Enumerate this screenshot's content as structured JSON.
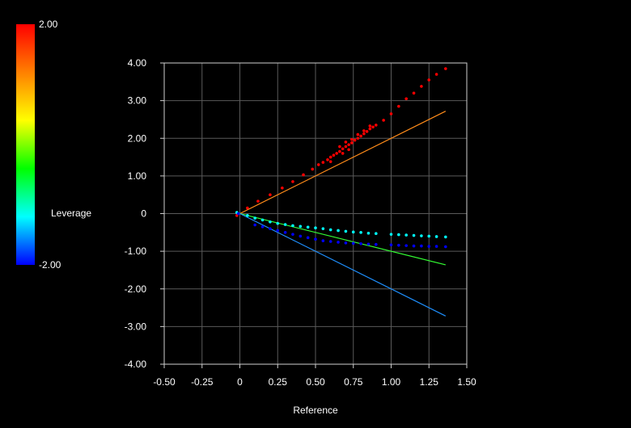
{
  "chart_data": {
    "type": "scatter",
    "title": "",
    "xlabel": "Reference",
    "ylabel": "",
    "xlim": [
      -0.5,
      1.5
    ],
    "ylim": [
      -4,
      4
    ],
    "x_ticks": [
      -0.5,
      -0.25,
      0,
      0.25,
      0.5,
      0.75,
      1.0,
      1.25,
      1.5
    ],
    "x_tick_labels": [
      "-0.50",
      "-0.25",
      "0",
      "0.25",
      "0.50",
      "0.75",
      "1.00",
      "1.25",
      "1.50"
    ],
    "y_ticks": [
      4,
      3,
      2,
      1,
      0,
      -1,
      -2,
      -3,
      -4
    ],
    "y_tick_labels": [
      "4.00",
      "3.00",
      "2.00",
      "1.00",
      "0",
      "-1.00",
      "-2.00",
      "-3.00",
      "-4.00"
    ],
    "grid": true,
    "background": "#000000",
    "colorbar": {
      "label": "Leverage",
      "max_label": "2.00",
      "min_label": "-2.00",
      "range": [
        -2,
        2
      ],
      "colors": [
        "#ff0000",
        "#ff8000",
        "#ffff00",
        "#00ff00",
        "#00ffff",
        "#0000ff"
      ]
    },
    "lines": [
      {
        "color": "#ff8c1a",
        "x": [
          -0.02,
          1.36
        ],
        "y": [
          -0.04,
          2.72
        ]
      },
      {
        "color": "#33ff33",
        "x": [
          -0.02,
          1.36
        ],
        "y": [
          0.02,
          -1.36
        ]
      },
      {
        "color": "#1e90ff",
        "x": [
          -0.02,
          1.36
        ],
        "y": [
          0.04,
          -2.72
        ]
      }
    ],
    "series": [
      {
        "color": "#ff0000",
        "points": [
          [
            -0.02,
            -0.05
          ],
          [
            0.05,
            0.15
          ],
          [
            0.12,
            0.33
          ],
          [
            0.2,
            0.5
          ],
          [
            0.28,
            0.68
          ],
          [
            0.35,
            0.85
          ],
          [
            0.42,
            1.03
          ],
          [
            0.48,
            1.18
          ],
          [
            0.52,
            1.3
          ],
          [
            0.55,
            1.36
          ],
          [
            0.58,
            1.43
          ],
          [
            0.6,
            1.5
          ],
          [
            0.62,
            1.55
          ],
          [
            0.64,
            1.6
          ],
          [
            0.66,
            1.65
          ],
          [
            0.68,
            1.72
          ],
          [
            0.7,
            1.78
          ],
          [
            0.72,
            1.83
          ],
          [
            0.74,
            1.88
          ],
          [
            0.76,
            1.95
          ],
          [
            0.78,
            2.0
          ],
          [
            0.8,
            2.06
          ],
          [
            0.82,
            2.12
          ],
          [
            0.84,
            2.18
          ],
          [
            0.86,
            2.25
          ],
          [
            0.88,
            2.3
          ],
          [
            0.9,
            2.35
          ],
          [
            0.95,
            2.48
          ],
          [
            1.0,
            2.65
          ],
          [
            1.05,
            2.85
          ],
          [
            1.1,
            3.05
          ],
          [
            1.15,
            3.2
          ],
          [
            1.2,
            3.38
          ],
          [
            1.25,
            3.55
          ],
          [
            1.3,
            3.7
          ],
          [
            1.36,
            3.85
          ],
          [
            0.66,
            1.78
          ],
          [
            0.7,
            1.9
          ],
          [
            0.74,
            1.97
          ],
          [
            0.78,
            2.1
          ],
          [
            0.82,
            2.2
          ],
          [
            0.86,
            2.33
          ],
          [
            0.6,
            1.38
          ],
          [
            0.68,
            1.6
          ],
          [
            0.72,
            1.7
          ]
        ]
      },
      {
        "color": "#00ffff",
        "points": [
          [
            -0.02,
            0.03
          ],
          [
            0.05,
            -0.05
          ],
          [
            0.1,
            -0.12
          ],
          [
            0.15,
            -0.17
          ],
          [
            0.2,
            -0.22
          ],
          [
            0.25,
            -0.26
          ],
          [
            0.3,
            -0.29
          ],
          [
            0.35,
            -0.32
          ],
          [
            0.4,
            -0.34
          ],
          [
            0.45,
            -0.36
          ],
          [
            0.5,
            -0.38
          ],
          [
            0.55,
            -0.4
          ],
          [
            0.6,
            -0.43
          ],
          [
            0.65,
            -0.45
          ],
          [
            0.7,
            -0.47
          ],
          [
            0.75,
            -0.49
          ],
          [
            0.8,
            -0.5
          ],
          [
            0.85,
            -0.52
          ],
          [
            0.9,
            -0.53
          ],
          [
            1.0,
            -0.55
          ],
          [
            1.05,
            -0.56
          ],
          [
            1.1,
            -0.57
          ],
          [
            1.15,
            -0.58
          ],
          [
            1.2,
            -0.59
          ],
          [
            1.25,
            -0.6
          ],
          [
            1.3,
            -0.61
          ],
          [
            1.36,
            -0.62
          ]
        ]
      },
      {
        "color": "#0000ff",
        "points": [
          [
            -0.01,
            0.0
          ],
          [
            0.1,
            -0.3
          ],
          [
            0.15,
            -0.35
          ],
          [
            0.2,
            -0.4
          ],
          [
            0.25,
            -0.45
          ],
          [
            0.3,
            -0.5
          ],
          [
            0.35,
            -0.55
          ],
          [
            0.4,
            -0.6
          ],
          [
            0.45,
            -0.64
          ],
          [
            0.5,
            -0.68
          ],
          [
            0.55,
            -0.72
          ],
          [
            0.6,
            -0.74
          ],
          [
            0.65,
            -0.76
          ],
          [
            0.7,
            -0.78
          ],
          [
            0.75,
            -0.79
          ],
          [
            0.8,
            -0.8
          ],
          [
            0.85,
            -0.81
          ],
          [
            0.9,
            -0.82
          ],
          [
            1.0,
            -0.83
          ],
          [
            1.05,
            -0.84
          ],
          [
            1.1,
            -0.85
          ],
          [
            1.15,
            -0.86
          ],
          [
            1.2,
            -0.86
          ],
          [
            1.25,
            -0.87
          ],
          [
            1.3,
            -0.87
          ],
          [
            1.36,
            -0.88
          ]
        ]
      }
    ]
  }
}
